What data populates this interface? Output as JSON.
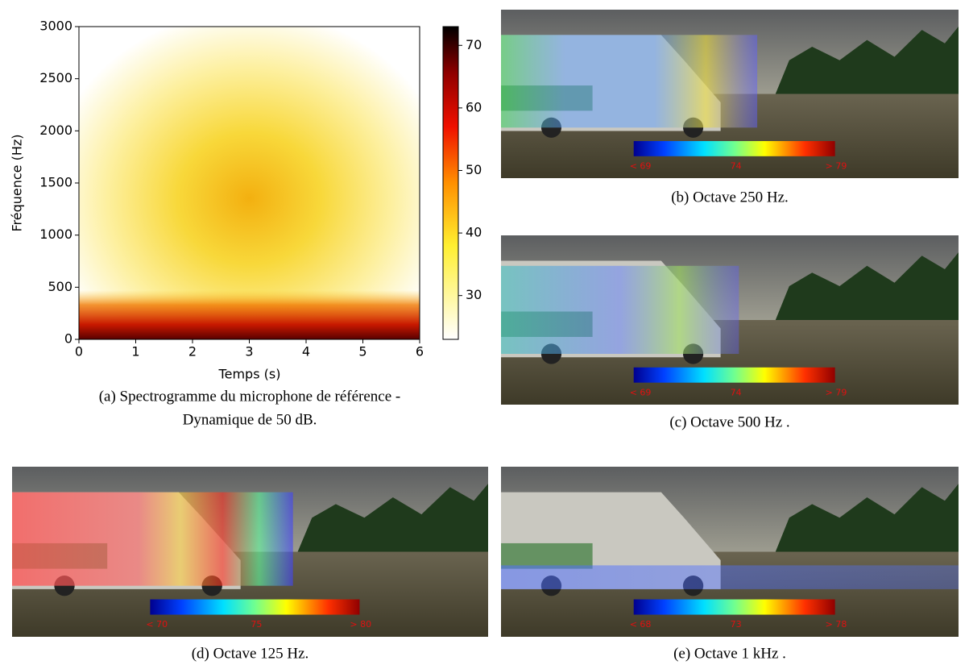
{
  "chart_data": {
    "type": "heatmap",
    "xlabel": "Temps (s)",
    "ylabel": "Fréquence (Hz)",
    "xlim": [
      0,
      6
    ],
    "xticks": [
      0,
      1,
      2,
      3,
      4,
      5,
      6
    ],
    "ylim": [
      0,
      3000
    ],
    "yticks": [
      0,
      500,
      1000,
      1500,
      2000,
      2500,
      3000
    ],
    "colorbar": {
      "lim": [
        23,
        73
      ],
      "ticks": [
        30,
        40,
        50,
        60,
        70
      ]
    },
    "caption": [
      "(a) Spectrogramme du microphone de référence -",
      "Dynamique de 50 dB."
    ]
  },
  "panels": [
    {
      "caption": "(b) Octave 250 Hz.",
      "scale_labels": [
        "< 69",
        "74",
        "> 79"
      ]
    },
    {
      "caption": "(c) Octave 500 Hz .",
      "scale_labels": [
        "< 69",
        "74",
        "> 79"
      ]
    },
    {
      "caption": "(d) Octave 125 Hz.",
      "scale_labels": [
        "< 70",
        "75",
        "> 80"
      ]
    },
    {
      "caption": "(e) Octave 1 kHz .",
      "scale_labels": [
        "< 68",
        "73",
        "> 78"
      ]
    }
  ]
}
